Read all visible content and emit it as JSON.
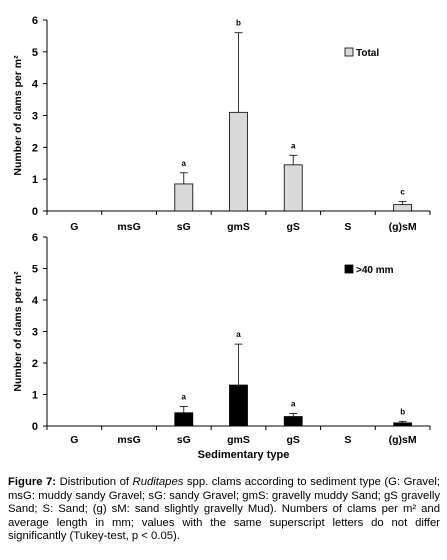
{
  "chart_data": [
    {
      "type": "bar",
      "categories": [
        "G",
        "msG",
        "sG",
        "gmS",
        "gS",
        "S",
        "(g)sM"
      ],
      "series": [
        {
          "name": "Total",
          "values": [
            0,
            0,
            0.85,
            3.1,
            1.45,
            0,
            0.2
          ],
          "errors": [
            0,
            0,
            0.35,
            2.5,
            0.3,
            0,
            0.1
          ],
          "letters": [
            "",
            "",
            "a",
            "b",
            "a",
            "",
            "c"
          ],
          "color": "#d9d9d9"
        }
      ],
      "ylabel": "Number of clams per m²",
      "xlabel": "",
      "ylim": [
        0,
        6
      ],
      "yticks": [
        "0",
        "1",
        "2",
        "3",
        "4",
        "5",
        "6"
      ],
      "legend_position": "top-right",
      "grid": false
    },
    {
      "type": "bar",
      "categories": [
        "G",
        "msG",
        "sG",
        "gmS",
        "gS",
        "S",
        "(g)sM"
      ],
      "series": [
        {
          "name": ">40 mm",
          "values": [
            0,
            0,
            0.42,
            1.3,
            0.3,
            0,
            0.1
          ],
          "errors": [
            0,
            0,
            0.2,
            1.3,
            0.1,
            0,
            0.05
          ],
          "letters": [
            "",
            "",
            "a",
            "a",
            "a",
            "",
            "b"
          ],
          "color": "#000000"
        }
      ],
      "ylabel": "Number of clams per m²",
      "xlabel": "Sedimentary type",
      "ylim": [
        0,
        6
      ],
      "yticks": [
        "0",
        "1",
        "2",
        "3",
        "4",
        "5",
        "6"
      ],
      "legend_position": "top-right",
      "grid": false
    }
  ],
  "caption": {
    "label": "Figure 7:",
    "text_before": " Distribution of ",
    "genus": "Ruditapes",
    "text_after": " spp. clams according to sediment type (G: Gravel; msG: muddy sandy Gravel; sG: sandy Gravel; gmS: gravelly muddy Sand; gS gravelly Sand; S: Sand; (g) sM: sand slightly gravelly Mud). Numbers of clams per m² and average length in mm; values with the same superscript letters do not differ significantly (Tukey-test, p < 0.05)."
  }
}
